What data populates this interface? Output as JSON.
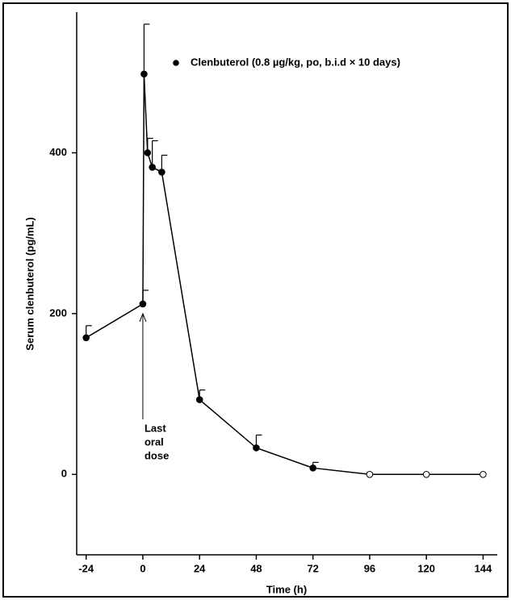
{
  "chart_data": {
    "type": "line",
    "xlabel": "Time (h)",
    "ylabel": "Serum clenbuterol (pg/mL)",
    "x": [
      -24,
      0,
      0.5,
      2,
      4,
      8,
      24,
      48,
      72,
      96,
      120,
      144
    ],
    "series": [
      {
        "name": "Clenbuterol (0.8 µg/kg, po, b.i.d × 10 days)",
        "color": "#000000",
        "values": [
          170,
          212,
          498,
          400,
          382,
          376,
          93,
          33,
          8,
          0,
          0,
          0
        ],
        "errors": [
          15,
          17,
          62,
          18,
          33,
          21,
          12,
          16,
          7,
          null,
          null,
          null
        ],
        "filled": [
          true,
          true,
          true,
          true,
          true,
          true,
          true,
          true,
          true,
          false,
          false,
          false
        ]
      }
    ],
    "annotation": {
      "lines": [
        "Last",
        "oral",
        "dose"
      ],
      "x": 0
    },
    "xlim": [
      -28,
      150
    ],
    "ylim": [
      -100,
      575
    ],
    "xticks": [
      -24,
      0,
      24,
      48,
      72,
      96,
      120,
      144
    ],
    "yticks": [
      0,
      200,
      400
    ],
    "legend": "upper right"
  }
}
